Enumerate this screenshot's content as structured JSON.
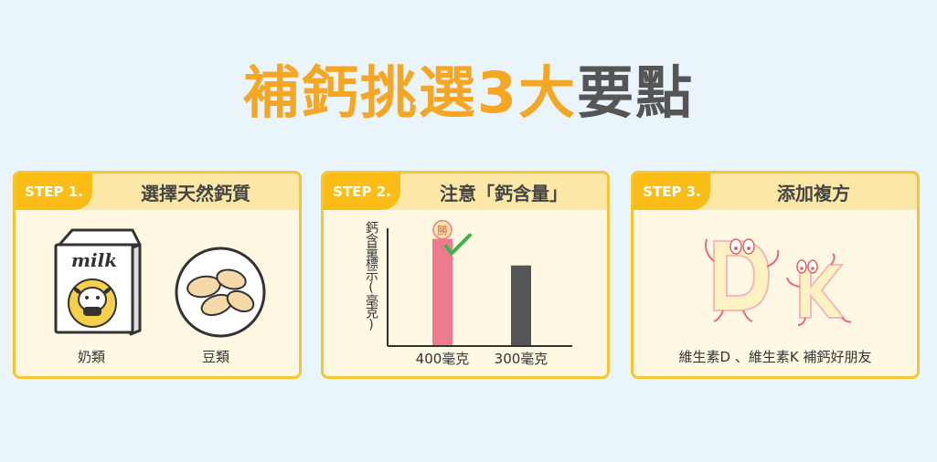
{
  "title": {
    "orange_part": "補鈣挑選3大",
    "gray_part": "要點"
  },
  "colors": {
    "accent_orange": "#f5a623",
    "badge_yellow": "#f9bd16",
    "header_yellow": "#fce8a6",
    "card_bg": "#fff9e3",
    "bar_pink": "#f07a8d",
    "bar_gray": "#555555",
    "check_green": "#3cb44b"
  },
  "steps": [
    {
      "badge": "STEP 1.",
      "title": "選擇天然鈣質",
      "items": [
        {
          "label": "奶類",
          "icon": "milk-carton-icon",
          "carton_text": "milk"
        },
        {
          "label": "豆類",
          "icon": "beans-plate-icon"
        }
      ]
    },
    {
      "badge": "STEP 2.",
      "title": "注意「鈣含量」",
      "chart": {
        "type": "bar",
        "ylabel": "鈣含量標示(毫克)",
        "categories": [
          "400毫克",
          "300毫克"
        ],
        "values": [
          400,
          300
        ],
        "winner_badge": "勝",
        "ylim": [
          0,
          440
        ]
      }
    },
    {
      "badge": "STEP 3.",
      "title": "添加複方",
      "letters": [
        "D",
        "K"
      ],
      "caption": "維生素D 、維生素K 補鈣好朋友"
    }
  ],
  "chart_data": {
    "type": "bar",
    "categories": [
      "400毫克",
      "300毫克"
    ],
    "values": [
      400,
      300
    ],
    "ylabel": "鈣含量標示(毫克)",
    "ylim": [
      0,
      440
    ]
  }
}
